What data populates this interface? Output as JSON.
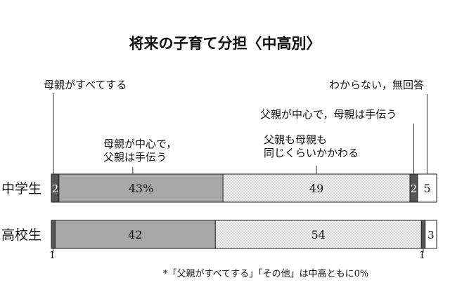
{
  "chart_data": {
    "type": "bar",
    "orientation": "horizontal",
    "stacked": true,
    "title": "将来の子育て分担〈中高別〉",
    "categories": [
      "中学生",
      "高校生"
    ],
    "segment_order": [
      "母親がすべてする",
      "母親が中心で，父親は手伝う",
      "父親も母親も同じくらいかかわる",
      "父親が中心で，母親は手伝う",
      "わからない，無回答"
    ],
    "series": [
      {
        "name": "母親がすべてする",
        "values": [
          2,
          1
        ],
        "labels": [
          "2",
          "1"
        ],
        "color": "#555555"
      },
      {
        "name": "母親が中心で，父親は手伝う",
        "values": [
          43,
          42
        ],
        "labels": [
          "43%",
          "42"
        ],
        "color": "#a8a8a8"
      },
      {
        "name": "父親も母親も同じくらいかかわる",
        "values": [
          49,
          54
        ],
        "labels": [
          "49",
          "54"
        ],
        "color": "#e6e6e6"
      },
      {
        "name": "父親が中心で，母親は手伝う",
        "values": [
          2,
          1
        ],
        "labels": [
          "2",
          "1"
        ],
        "color": "#555555"
      },
      {
        "name": "わからない，無回答",
        "values": [
          5,
          3
        ],
        "labels": [
          "5",
          "3"
        ],
        "color": "#ffffff"
      }
    ],
    "annotations": [
      "母親がすべてする",
      "母親が中心で，\n父親は手伝う",
      "父親も母親も\n同じくらいかかわる",
      "父親が中心で，母親は手伝う",
      "わからない，無回答"
    ],
    "note": "*「父親がすべてする」「その他」は中高ともに0%"
  }
}
